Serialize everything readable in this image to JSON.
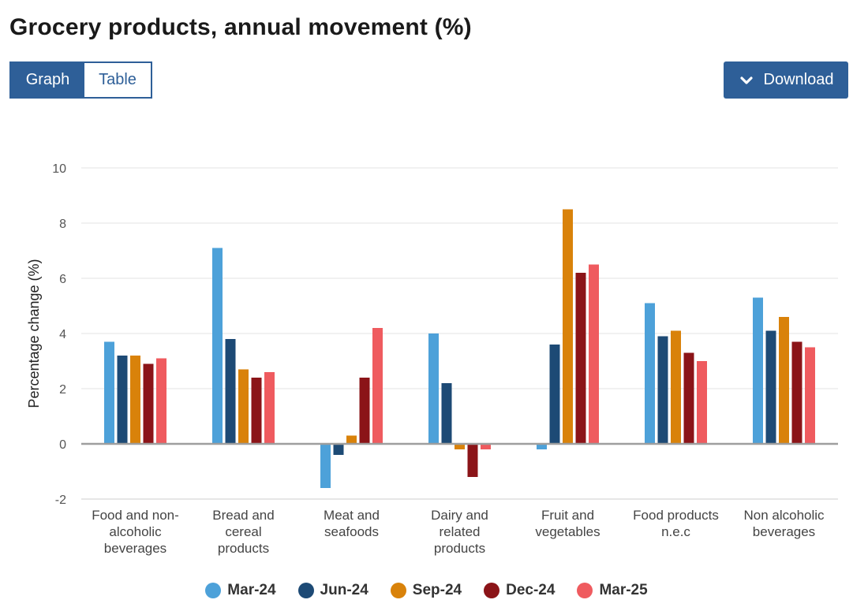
{
  "page": {
    "title": "Grocery products, annual movement (%)"
  },
  "toolbar": {
    "graph_label": "Graph",
    "table_label": "Table",
    "download_label": "Download",
    "download_icon": "chevron-down-icon"
  },
  "colors": {
    "accent": "#2e5f98",
    "series": [
      "#4da1d9",
      "#1d4a75",
      "#d9820a",
      "#8b1418",
      "#ef5b5f"
    ]
  },
  "chart_data": {
    "type": "bar",
    "title": "Grocery products, annual movement (%)",
    "xlabel": "",
    "ylabel": "Percentage change (%)",
    "ylim": [
      -2,
      10
    ],
    "yticks": [
      -2,
      0,
      2,
      4,
      6,
      8,
      10
    ],
    "grid": true,
    "legend_position": "bottom",
    "categories": [
      [
        "Food and non-",
        "alcoholic",
        "beverages"
      ],
      [
        "Bread and",
        "cereal",
        "products"
      ],
      [
        "Meat and",
        "seafoods"
      ],
      [
        "Dairy and",
        "related",
        "products"
      ],
      [
        "Fruit and",
        "vegetables"
      ],
      [
        "Food products",
        "n.e.c"
      ],
      [
        "Non alcoholic",
        "beverages"
      ]
    ],
    "series": [
      {
        "name": "Mar-24",
        "values": [
          3.7,
          7.1,
          -1.6,
          4.0,
          -0.2,
          5.1,
          5.3
        ]
      },
      {
        "name": "Jun-24",
        "values": [
          3.2,
          3.8,
          -0.4,
          2.2,
          3.6,
          3.9,
          4.1
        ]
      },
      {
        "name": "Sep-24",
        "values": [
          3.2,
          2.7,
          0.3,
          -0.2,
          8.5,
          4.1,
          4.6
        ]
      },
      {
        "name": "Dec-24",
        "values": [
          2.9,
          2.4,
          2.4,
          -1.2,
          6.2,
          3.3,
          3.7
        ]
      },
      {
        "name": "Mar-25",
        "values": [
          3.1,
          2.6,
          4.2,
          -0.2,
          6.5,
          3.0,
          3.5
        ]
      }
    ]
  }
}
